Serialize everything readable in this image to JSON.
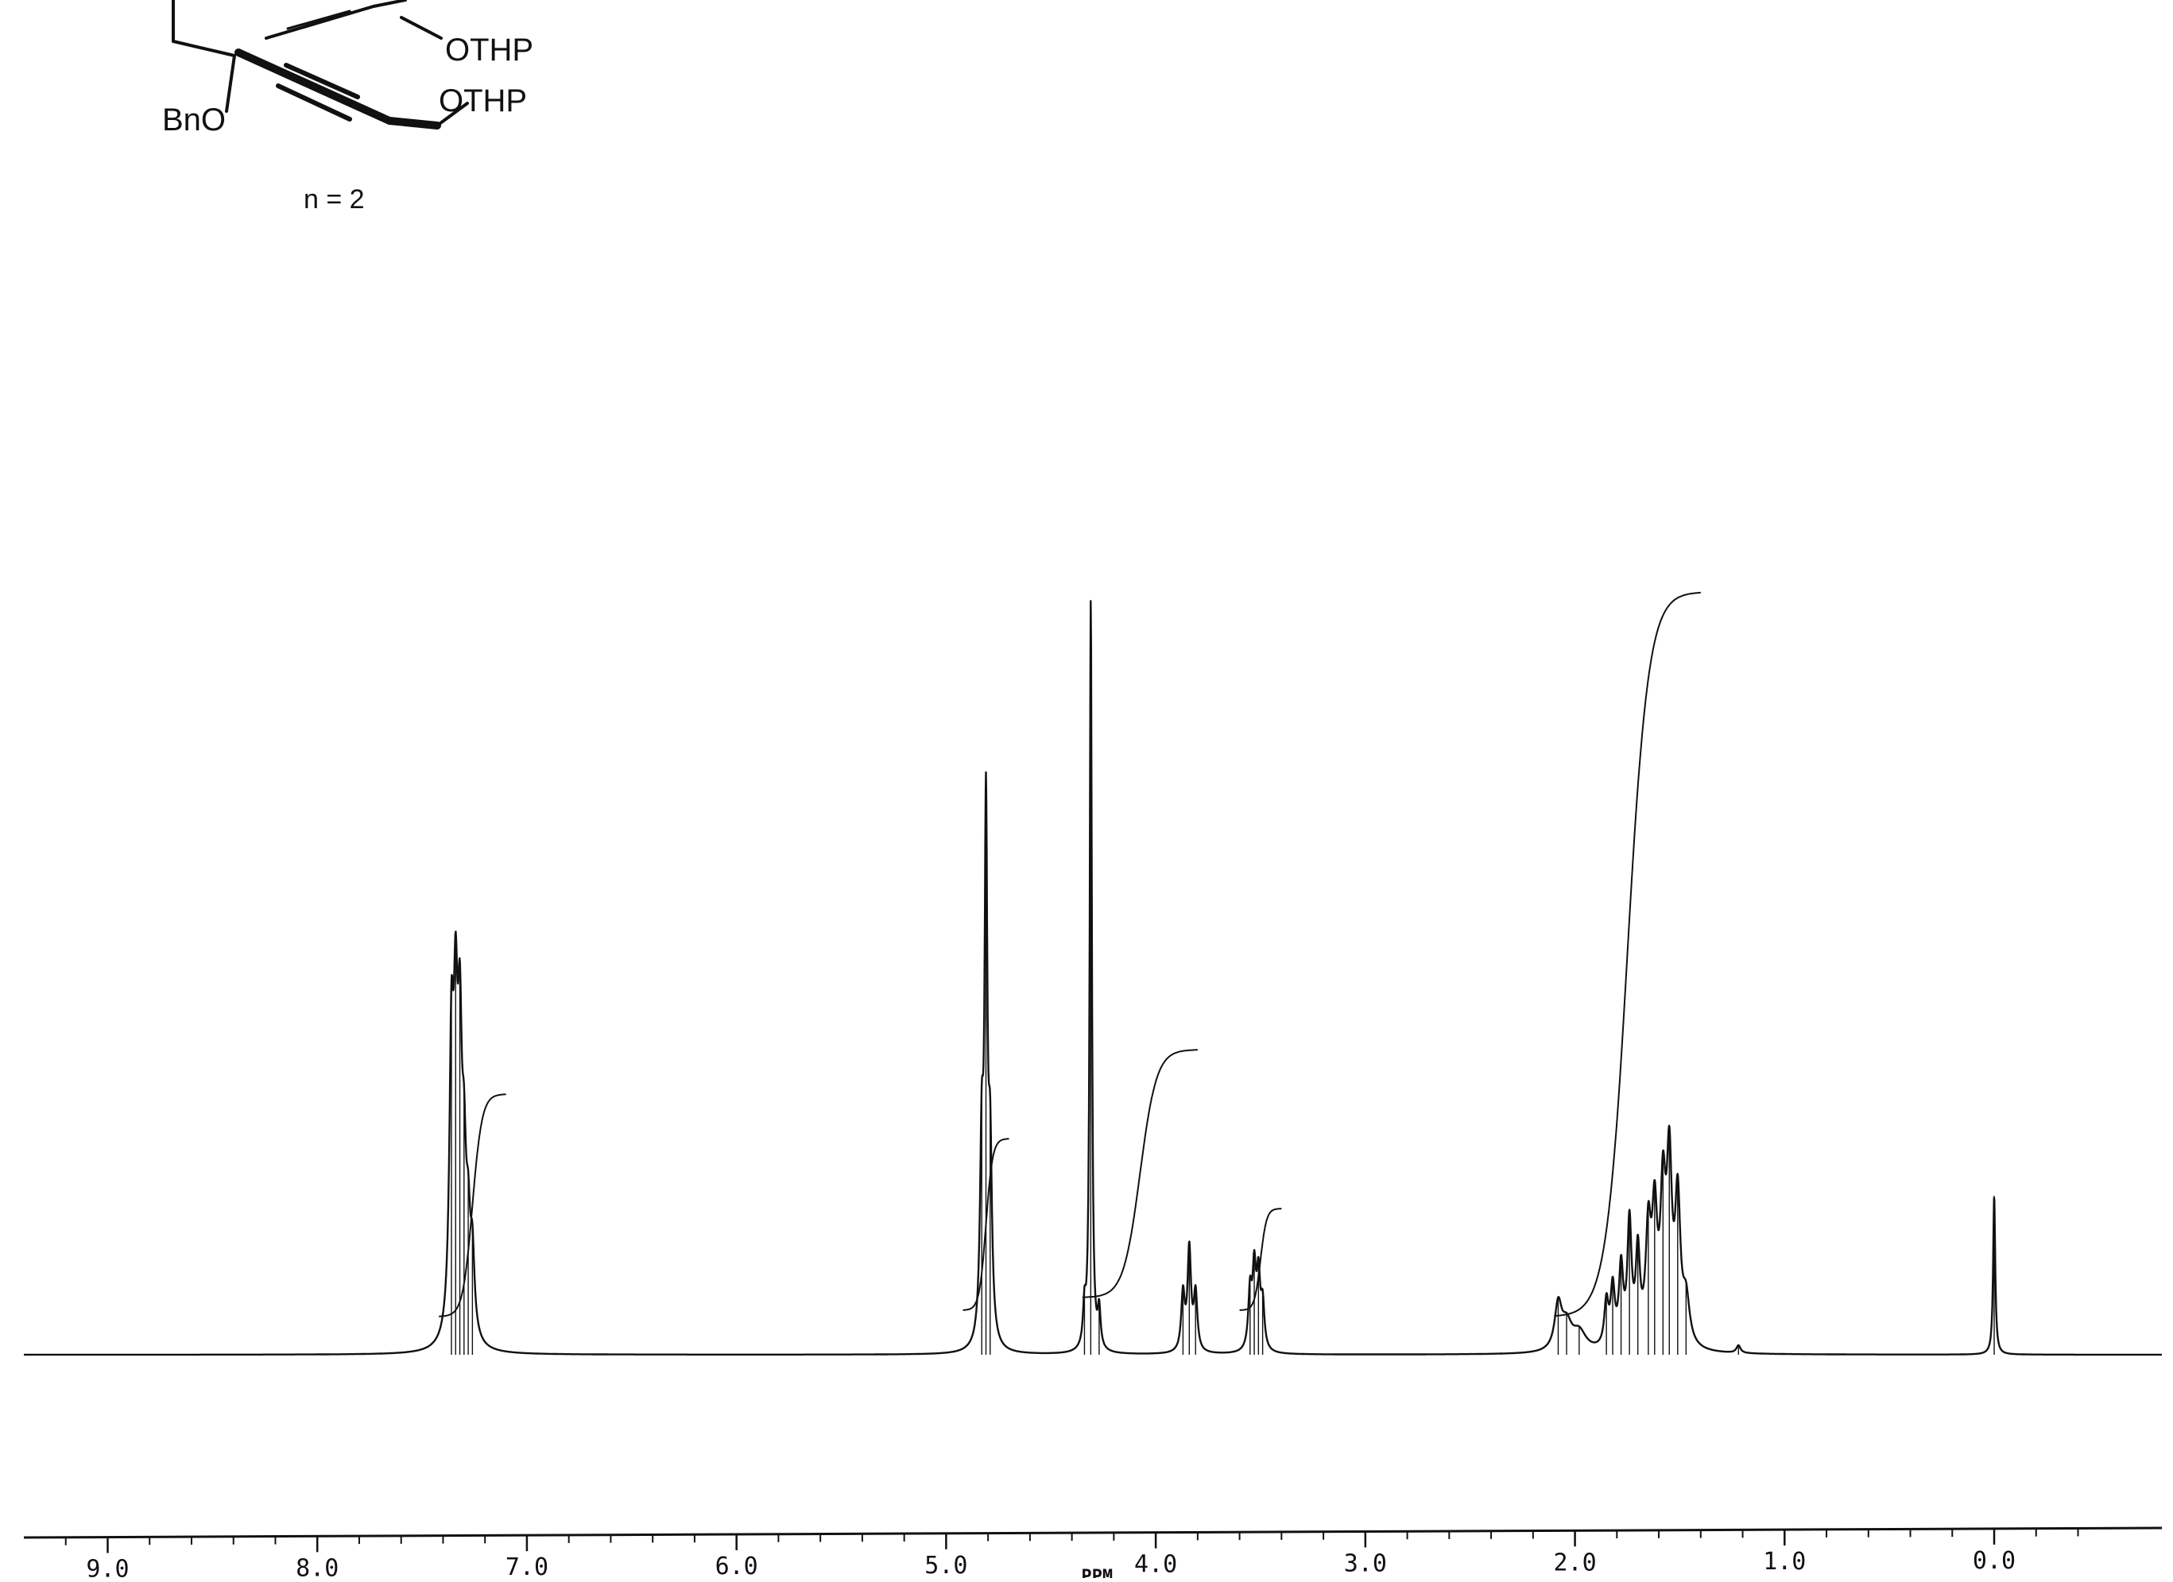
{
  "chart_data": {
    "type": "line",
    "title": "",
    "xlabel": "PPM",
    "ylabel": "",
    "xlim": [
      9.4,
      -0.8
    ],
    "x_reversed": true,
    "ylim": [
      0,
      1
    ],
    "grid": false,
    "x_ticks": [
      {
        "value": 9.0,
        "label": "9.0"
      },
      {
        "value": 8.0,
        "label": "8.0"
      },
      {
        "value": 7.0,
        "label": "7.0"
      },
      {
        "value": 6.0,
        "label": "6.0"
      },
      {
        "value": 5.0,
        "label": "5.0"
      },
      {
        "value": 4.0,
        "label": "4.0"
      },
      {
        "value": 3.0,
        "label": "3.0"
      },
      {
        "value": 2.0,
        "label": "2.0"
      },
      {
        "value": 1.0,
        "label": "1.0"
      },
      {
        "value": 0.0,
        "label": "0.0"
      }
    ],
    "peaks": [
      {
        "ppm": 7.36,
        "height": 0.43,
        "width": 0.012
      },
      {
        "ppm": 7.34,
        "height": 0.42,
        "width": 0.012
      },
      {
        "ppm": 7.32,
        "height": 0.4,
        "width": 0.012
      },
      {
        "ppm": 7.3,
        "height": 0.22,
        "width": 0.012
      },
      {
        "ppm": 7.28,
        "height": 0.14,
        "width": 0.012
      },
      {
        "ppm": 7.26,
        "height": 0.12,
        "width": 0.012
      },
      {
        "ppm": 4.83,
        "height": 0.3,
        "width": 0.01
      },
      {
        "ppm": 4.81,
        "height": 0.8,
        "width": 0.008
      },
      {
        "ppm": 4.79,
        "height": 0.28,
        "width": 0.01
      },
      {
        "ppm": 4.34,
        "height": 0.06,
        "width": 0.008
      },
      {
        "ppm": 4.31,
        "height": 1.18,
        "width": 0.006
      },
      {
        "ppm": 4.27,
        "height": 0.06,
        "width": 0.008
      },
      {
        "ppm": 3.87,
        "height": 0.09,
        "width": 0.01
      },
      {
        "ppm": 3.84,
        "height": 0.16,
        "width": 0.01
      },
      {
        "ppm": 3.81,
        "height": 0.09,
        "width": 0.01
      },
      {
        "ppm": 3.55,
        "height": 0.09,
        "width": 0.01
      },
      {
        "ppm": 3.53,
        "height": 0.12,
        "width": 0.01
      },
      {
        "ppm": 3.51,
        "height": 0.11,
        "width": 0.01
      },
      {
        "ppm": 3.49,
        "height": 0.07,
        "width": 0.01
      },
      {
        "ppm": 2.08,
        "height": 0.07,
        "width": 0.02
      },
      {
        "ppm": 2.04,
        "height": 0.04,
        "width": 0.03
      },
      {
        "ppm": 1.98,
        "height": 0.03,
        "width": 0.04
      },
      {
        "ppm": 1.85,
        "height": 0.07,
        "width": 0.012
      },
      {
        "ppm": 1.82,
        "height": 0.09,
        "width": 0.012
      },
      {
        "ppm": 1.78,
        "height": 0.12,
        "width": 0.012
      },
      {
        "ppm": 1.74,
        "height": 0.19,
        "width": 0.012
      },
      {
        "ppm": 1.7,
        "height": 0.14,
        "width": 0.012
      },
      {
        "ppm": 1.65,
        "height": 0.17,
        "width": 0.015
      },
      {
        "ppm": 1.62,
        "height": 0.19,
        "width": 0.015
      },
      {
        "ppm": 1.58,
        "height": 0.22,
        "width": 0.015
      },
      {
        "ppm": 1.55,
        "height": 0.27,
        "width": 0.015
      },
      {
        "ppm": 1.51,
        "height": 0.22,
        "width": 0.015
      },
      {
        "ppm": 1.47,
        "height": 0.07,
        "width": 0.02
      },
      {
        "ppm": 1.22,
        "height": 0.012,
        "width": 0.012
      },
      {
        "ppm": 0.0,
        "height": 0.25,
        "width": 0.006
      }
    ],
    "integrals": [
      {
        "from": 7.42,
        "to": 7.1,
        "start": 0.06,
        "end": 0.41
      },
      {
        "from": 4.92,
        "to": 4.7,
        "start": 0.07,
        "end": 0.34
      },
      {
        "from": 4.35,
        "to": 3.8,
        "start": 0.09,
        "end": 0.48
      },
      {
        "from": 3.6,
        "to": 3.4,
        "start": 0.07,
        "end": 0.23
      },
      {
        "from": 2.1,
        "to": 1.4,
        "start": 0.06,
        "end": 1.2
      }
    ]
  },
  "structure": {
    "group_1": "OTHP",
    "group_2": "OTHP",
    "group_3": "BnO",
    "note": "n = 2"
  }
}
